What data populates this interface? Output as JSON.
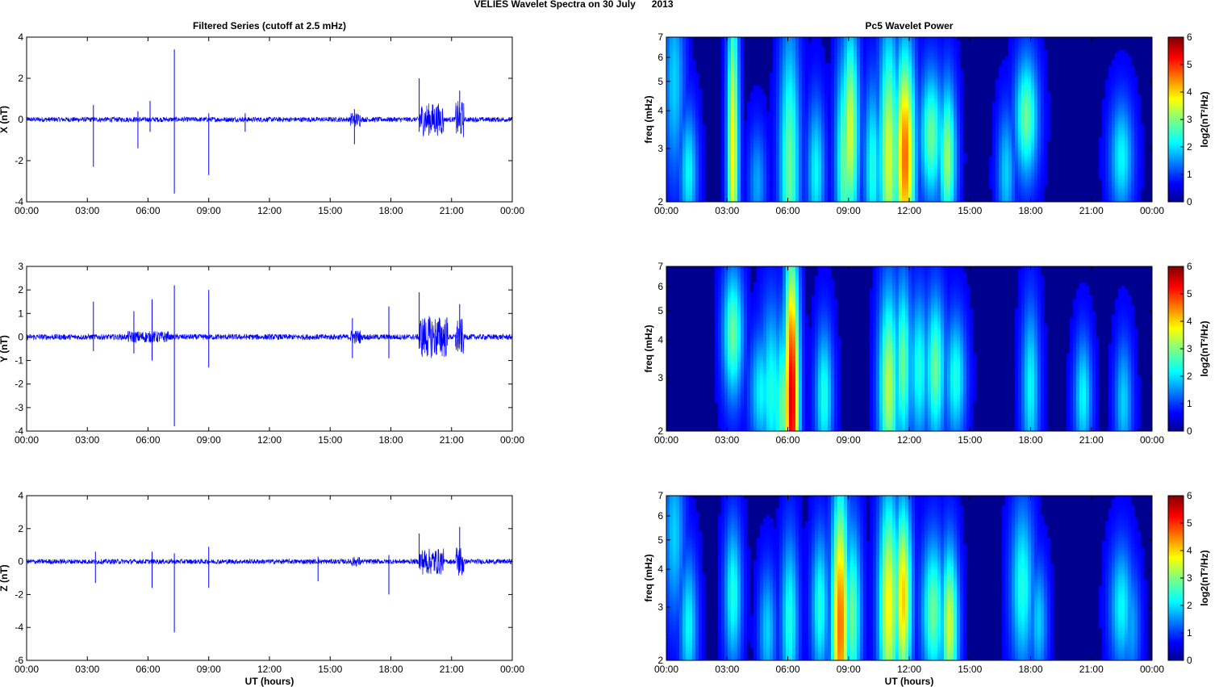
{
  "figure_title": "VELIES Wavelet Spectra on 30 July      2013",
  "colors": {
    "trace": "#0000ff",
    "axis": "#000000",
    "heat_background": "#00008f"
  },
  "chart_data": [
    {
      "type": "line",
      "title": "Filtered Series (cutoff at 2.5 mHz)",
      "ylabel": "X (nT)",
      "xlabel": "",
      "ylim": [
        -4,
        4
      ],
      "yticks": [
        "4",
        "2",
        "0",
        "-2",
        "-4"
      ],
      "xticks": [
        "00:00",
        "03:00",
        "06:00",
        "09:00",
        "12:00",
        "15:00",
        "18:00",
        "21:00",
        "00:00"
      ],
      "noise_amplitude": 0.12,
      "bursts": [
        [
          16.0,
          16.5,
          0.35
        ],
        [
          19.4,
          20.6,
          0.8
        ],
        [
          21.2,
          21.6,
          0.9
        ]
      ],
      "spikes": [
        [
          3.3,
          0.7,
          -2.3
        ],
        [
          5.5,
          0.4,
          -1.4
        ],
        [
          6.1,
          0.9,
          -0.6
        ],
        [
          7.3,
          3.4,
          -3.6
        ],
        [
          9.0,
          0.3,
          -2.7
        ],
        [
          10.8,
          0.3,
          -0.6
        ],
        [
          16.2,
          0.5,
          -1.2
        ],
        [
          19.4,
          2.0,
          -0.6
        ],
        [
          21.4,
          1.4,
          -0.3
        ]
      ]
    },
    {
      "type": "line",
      "title": "",
      "ylabel": "Y (nT)",
      "xlabel": "",
      "ylim": [
        -4,
        3
      ],
      "yticks": [
        "3",
        "2",
        "1",
        "0",
        "-1",
        "-2",
        "-3",
        "-4"
      ],
      "xticks": [
        "00:00",
        "03:00",
        "06:00",
        "09:00",
        "12:00",
        "15:00",
        "18:00",
        "21:00",
        "00:00"
      ],
      "noise_amplitude": 0.12,
      "bursts": [
        [
          5.0,
          7.0,
          0.25
        ],
        [
          16.0,
          16.5,
          0.3
        ],
        [
          19.4,
          20.8,
          0.9
        ],
        [
          21.2,
          21.6,
          0.8
        ]
      ],
      "spikes": [
        [
          3.3,
          1.5,
          -0.6
        ],
        [
          5.3,
          1.1,
          -0.7
        ],
        [
          6.2,
          1.6,
          -1.0
        ],
        [
          7.3,
          2.2,
          -3.8
        ],
        [
          9.0,
          2.0,
          -1.3
        ],
        [
          16.1,
          0.8,
          -0.9
        ],
        [
          17.9,
          1.3,
          -0.9
        ],
        [
          19.4,
          1.9,
          -0.5
        ],
        [
          21.4,
          1.4,
          -0.3
        ]
      ]
    },
    {
      "type": "line",
      "title": "",
      "ylabel": "Z (nT)",
      "xlabel": "UT (hours)",
      "ylim": [
        -6,
        4
      ],
      "yticks": [
        "4",
        "2",
        "0",
        "-2",
        "-4",
        "-6"
      ],
      "xticks": [
        "00:00",
        "03:00",
        "06:00",
        "09:00",
        "12:00",
        "15:00",
        "18:00",
        "21:00",
        "00:00"
      ],
      "noise_amplitude": 0.15,
      "bursts": [
        [
          16.0,
          16.5,
          0.3
        ],
        [
          19.4,
          20.6,
          0.8
        ],
        [
          21.2,
          21.6,
          1.0
        ]
      ],
      "spikes": [
        [
          3.4,
          0.6,
          -1.3
        ],
        [
          6.2,
          0.6,
          -1.6
        ],
        [
          7.3,
          0.5,
          -4.3
        ],
        [
          9.0,
          0.9,
          -1.6
        ],
        [
          14.4,
          0.3,
          -1.2
        ],
        [
          17.9,
          0.4,
          -2.0
        ],
        [
          19.4,
          1.7,
          -0.4
        ],
        [
          21.4,
          2.1,
          -0.5
        ]
      ]
    },
    {
      "type": "heatmap",
      "title": "Pc5 Wavelet Power",
      "ylabel": "freq (mHz)",
      "xlabel": "",
      "yscale": "log",
      "ylim": [
        2,
        7
      ],
      "yticks": [
        "7",
        "6",
        "5",
        "4",
        "3",
        "2"
      ],
      "xticks": [
        "00:00",
        "03:00",
        "06:00",
        "09:00",
        "12:00",
        "15:00",
        "18:00",
        "21:00",
        "00:00"
      ],
      "colorbar": {
        "label": "log2(nT²/Hz)",
        "range": [
          0,
          6
        ],
        "ticks": [
          "6",
          "5",
          "4",
          "3",
          "2",
          "1",
          "0"
        ]
      },
      "blobs": [
        [
          0.4,
          5.0,
          3.5,
          0.35,
          1.5
        ],
        [
          1.1,
          2.5,
          1.0,
          0.3,
          1.8
        ],
        [
          3.3,
          2.9,
          4.0,
          0.2,
          3.5
        ],
        [
          4.5,
          2.3,
          0.8,
          0.3,
          1.2
        ],
        [
          6.1,
          2.6,
          2.8,
          0.35,
          2.5
        ],
        [
          7.4,
          2.5,
          1.2,
          0.3,
          1.8
        ],
        [
          8.8,
          2.7,
          2.2,
          0.3,
          2.5
        ],
        [
          9.1,
          3.4,
          2.6,
          0.3,
          3.2
        ],
        [
          10.2,
          2.6,
          1.5,
          0.3,
          2.0
        ],
        [
          11.0,
          2.8,
          2.8,
          0.35,
          3.2
        ],
        [
          11.8,
          2.8,
          2.2,
          0.35,
          4.5
        ],
        [
          13.1,
          3.3,
          1.4,
          0.4,
          2.5
        ],
        [
          13.9,
          2.8,
          1.4,
          0.3,
          2.8
        ],
        [
          16.8,
          2.5,
          1.0,
          0.3,
          1.5
        ],
        [
          17.8,
          3.8,
          1.5,
          0.4,
          2.5
        ],
        [
          22.5,
          2.8,
          1.0,
          0.4,
          1.8
        ]
      ]
    },
    {
      "type": "heatmap",
      "title": "",
      "ylabel": "freq (mHz)",
      "xlabel": "",
      "yscale": "log",
      "ylim": [
        2,
        7
      ],
      "yticks": [
        "7",
        "6",
        "5",
        "4",
        "3",
        "2"
      ],
      "xticks": [
        "00:00",
        "03:00",
        "06:00",
        "09:00",
        "12:00",
        "15:00",
        "18:00",
        "21:00",
        "00:00"
      ],
      "colorbar": {
        "label": "log2(nT²/Hz)",
        "range": [
          0,
          6
        ],
        "ticks": [
          "6",
          "5",
          "4",
          "3",
          "2",
          "1",
          "0"
        ]
      },
      "blobs": [
        [
          3.3,
          4.2,
          1.8,
          0.35,
          2.5
        ],
        [
          4.7,
          2.7,
          1.0,
          0.4,
          1.8
        ],
        [
          5.2,
          2.7,
          1.6,
          0.4,
          2.0
        ],
        [
          5.8,
          2.4,
          1.5,
          0.4,
          2.5
        ],
        [
          6.2,
          2.5,
          3.0,
          0.25,
          5.5
        ],
        [
          7.8,
          2.6,
          1.2,
          0.3,
          2.0
        ],
        [
          11.0,
          2.8,
          2.0,
          0.35,
          3.0
        ],
        [
          11.7,
          3.3,
          2.0,
          0.3,
          2.5
        ],
        [
          12.5,
          3.2,
          1.6,
          0.35,
          2.0
        ],
        [
          13.3,
          3.2,
          1.6,
          0.35,
          2.5
        ],
        [
          14.3,
          3.0,
          1.2,
          0.35,
          2.0
        ],
        [
          18.0,
          2.8,
          1.6,
          0.3,
          1.8
        ],
        [
          20.6,
          2.6,
          1.0,
          0.3,
          1.8
        ],
        [
          22.6,
          2.5,
          1.0,
          0.3,
          1.5
        ]
      ]
    },
    {
      "type": "heatmap",
      "title": "",
      "ylabel": "freq (mHz)",
      "xlabel": "UT (hours)",
      "yscale": "log",
      "ylim": [
        2,
        7
      ],
      "yticks": [
        "7",
        "6",
        "5",
        "4",
        "3",
        "2"
      ],
      "xticks": [
        "00:00",
        "03:00",
        "06:00",
        "09:00",
        "12:00",
        "15:00",
        "18:00",
        "21:00",
        "00:00"
      ],
      "colorbar": {
        "label": "log2(nT²/Hz)",
        "range": [
          0,
          6
        ],
        "ticks": [
          "6",
          "5",
          "4",
          "3",
          "2",
          "1",
          "0"
        ]
      },
      "blobs": [
        [
          0.4,
          5.2,
          3.0,
          0.35,
          1.5
        ],
        [
          1.1,
          2.6,
          1.2,
          0.3,
          1.8
        ],
        [
          3.3,
          3.3,
          1.6,
          0.3,
          2.0
        ],
        [
          5.0,
          2.5,
          1.0,
          0.3,
          1.5
        ],
        [
          6.1,
          2.7,
          1.6,
          0.3,
          2.0
        ],
        [
          7.6,
          3.0,
          1.5,
          0.3,
          2.0
        ],
        [
          8.6,
          2.6,
          2.8,
          0.3,
          4.5
        ],
        [
          9.2,
          2.8,
          1.8,
          0.3,
          2.5
        ],
        [
          11.0,
          3.0,
          2.6,
          0.35,
          3.5
        ],
        [
          11.7,
          3.2,
          2.2,
          0.3,
          3.8
        ],
        [
          13.2,
          2.9,
          1.4,
          0.4,
          2.5
        ],
        [
          14.0,
          2.6,
          1.4,
          0.3,
          3.2
        ],
        [
          17.6,
          3.5,
          2.0,
          0.4,
          2.0
        ],
        [
          18.4,
          2.7,
          1.0,
          0.3,
          1.5
        ],
        [
          22.5,
          3.0,
          1.2,
          0.4,
          1.8
        ],
        [
          23.0,
          2.6,
          1.0,
          0.3,
          1.2
        ]
      ]
    }
  ]
}
